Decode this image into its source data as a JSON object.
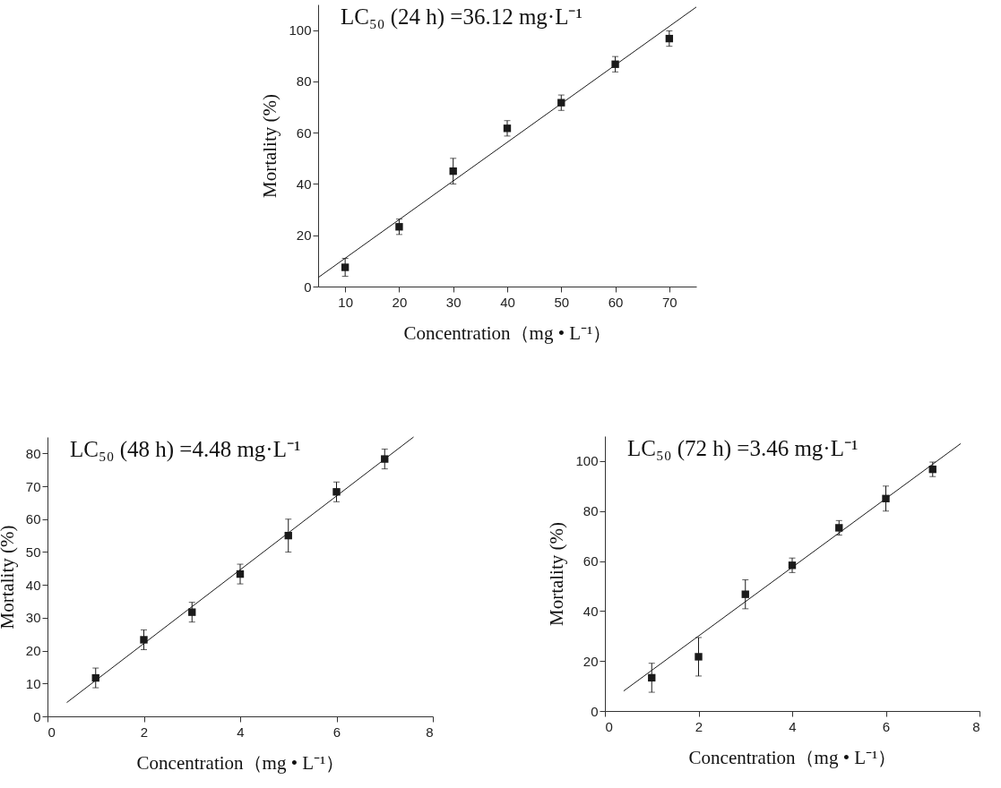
{
  "chart_data": [
    {
      "type": "scatter",
      "xlabel": "Concentration（mg • L⁻¹）",
      "ylabel": "Mortality (%)",
      "annotations": [
        "LC₅₀ (24 h) =36.12 mg·L⁻¹"
      ],
      "xlim": [
        5,
        75
      ],
      "ylim": [
        0,
        110
      ],
      "xticks": [
        10,
        20,
        30,
        40,
        50,
        60,
        70
      ],
      "yticks": [
        0,
        20,
        40,
        60,
        80,
        100
      ],
      "marker": "square",
      "series": [
        {
          "color": "#1a1a1a",
          "x": [
            10,
            20,
            30,
            40,
            50,
            60,
            70
          ],
          "values": [
            7.5,
            23.3,
            45,
            61.7,
            71.7,
            86.7,
            96.7
          ],
          "errors": [
            3.5,
            3,
            5,
            3,
            3,
            3,
            3
          ]
        },
        {
          "type": "line",
          "color": "#1a1a1a",
          "line_style": "solid",
          "marker": "none",
          "x": [
            5,
            75
          ],
          "values": [
            3.5,
            109
          ]
        }
      ]
    },
    {
      "type": "scatter",
      "xlabel": "Concentration（mg • L⁻¹）",
      "ylabel": "Mortality (%)",
      "annotations": [
        "LC₅₀ (48 h) =4.48 mg·L⁻¹"
      ],
      "xlim": [
        0,
        8
      ],
      "ylim": [
        0,
        85
      ],
      "xticks": [
        0,
        2,
        4,
        6,
        8
      ],
      "yticks": [
        0,
        10,
        20,
        30,
        40,
        50,
        60,
        70,
        80
      ],
      "marker": "square",
      "series": [
        {
          "color": "#1a1a1a",
          "x": [
            1,
            2,
            3,
            4,
            5,
            6,
            7
          ],
          "values": [
            11.7,
            23.3,
            31.7,
            43.3,
            55,
            68.3,
            78.3
          ],
          "errors": [
            3,
            3,
            3,
            3,
            5,
            3,
            3
          ]
        },
        {
          "type": "line",
          "color": "#1a1a1a",
          "line_style": "solid",
          "marker": "none",
          "x": [
            0.4,
            7.6
          ],
          "values": [
            4.2,
            85
          ]
        }
      ]
    },
    {
      "type": "scatter",
      "xlabel": "Concentration（mg • L⁻¹）",
      "ylabel": "Mortality (%)",
      "annotations": [
        "LC₅₀ (72 h) =3.46 mg·L⁻¹"
      ],
      "xlim": [
        0,
        8
      ],
      "ylim": [
        0,
        110
      ],
      "xticks": [
        0,
        2,
        4,
        6,
        8
      ],
      "yticks": [
        0,
        20,
        40,
        60,
        80,
        100
      ],
      "marker": "square",
      "series": [
        {
          "color": "#1a1a1a",
          "x": [
            1,
            2,
            3,
            4,
            5,
            6,
            7
          ],
          "values": [
            13.3,
            21.7,
            46.7,
            58.3,
            73.3,
            85,
            96.7
          ],
          "errors": [
            5.8,
            7.7,
            5.8,
            2.9,
            2.9,
            5,
            2.9
          ]
        },
        {
          "type": "line",
          "color": "#1a1a1a",
          "line_style": "solid",
          "marker": "none",
          "x": [
            0.4,
            7.6
          ],
          "values": [
            8,
            107
          ]
        }
      ]
    }
  ]
}
